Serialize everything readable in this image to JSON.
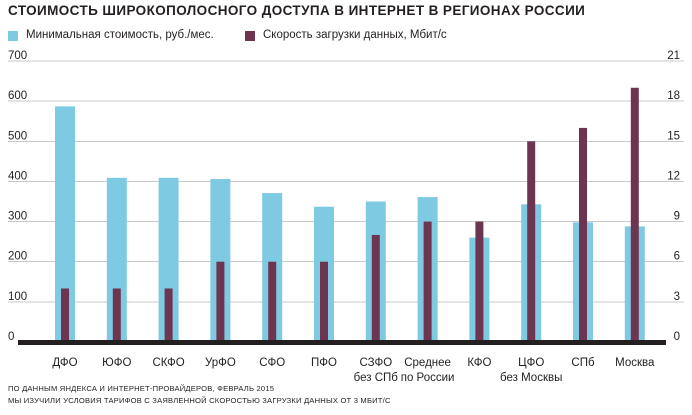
{
  "chart_data": {
    "type": "bar",
    "title": "СТОИМОСТЬ ШИРОКОПОЛОСНОГО ДОСТУПА В ИНТЕРНЕТ В РЕГИОНАХ РОССИИ",
    "categories": [
      [
        "ДФО"
      ],
      [
        "ЮФО"
      ],
      [
        "СКФО"
      ],
      [
        "УрФО"
      ],
      [
        "СФО"
      ],
      [
        "ПФО"
      ],
      [
        "СЗФО",
        "без СПб"
      ],
      [
        "Среднее",
        "по России"
      ],
      [
        "КФО"
      ],
      [
        "ЦФО",
        "без Москвы"
      ],
      [
        "СПб"
      ],
      [
        "Москва"
      ]
    ],
    "series": [
      {
        "name": "Минимальная стоимость, руб./мес.",
        "axis": "left",
        "color": "#7ecae3",
        "values": [
          587,
          409,
          409,
          406,
          371,
          337,
          350,
          361,
          260,
          343,
          298,
          288
        ]
      },
      {
        "name": "Скорость загрузки данных, Мбит/с",
        "axis": "right",
        "color": "#6e3550",
        "values": [
          4,
          4,
          4,
          6,
          6,
          6,
          8,
          9,
          9,
          15,
          16,
          19
        ]
      }
    ],
    "left_axis": {
      "min": 0,
      "max": 700,
      "ticks": [
        0,
        100,
        200,
        300,
        400,
        500,
        600,
        700
      ]
    },
    "right_axis": {
      "min": 0,
      "max": 21,
      "ticks": [
        0,
        3,
        6,
        9,
        12,
        15,
        18,
        21
      ]
    },
    "grid": true,
    "legend_position": "top-left"
  },
  "footnotes": [
    "ПО ДАННЫМ ЯНДЕКСА И ИНТЕРНЕТ-ПРОВАЙДЕРОВ, ФЕВРАЛЬ 2015",
    "МЫ ИЗУЧИЛИ УСЛОВИЯ ТАРИФОВ С ЗАЯВЛЕННОЙ СКОРОСТЬЮ ЗАГРУЗКИ ДАННЫХ ОТ 3 МБИТ/С"
  ]
}
